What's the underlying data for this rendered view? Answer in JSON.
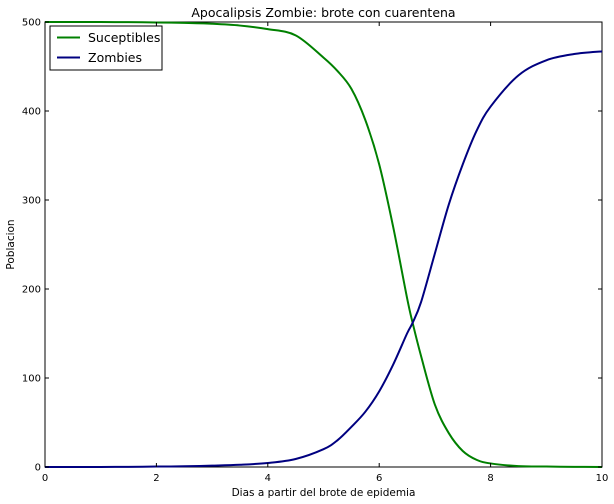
{
  "chart_data": {
    "type": "line",
    "title": "Apocalipsis Zombie: brote con cuarentena",
    "xlabel": "Dias a partir del brote de epidemia",
    "ylabel": "Poblacion",
    "xlim": [
      0,
      10
    ],
    "ylim": [
      0,
      500
    ],
    "xticks": [
      0,
      2,
      4,
      6,
      8,
      10
    ],
    "yticks": [
      0,
      100,
      200,
      300,
      400,
      500
    ],
    "grid": false,
    "legend_position": "top-left",
    "series": [
      {
        "name": "Suceptibles",
        "color": "#008000",
        "x": [
          0,
          0.5,
          1,
          1.5,
          2,
          2.5,
          3,
          3.5,
          4,
          4.5,
          5,
          5.25,
          5.5,
          5.75,
          6,
          6.25,
          6.5,
          6.6,
          6.75,
          7,
          7.25,
          7.5,
          7.75,
          8,
          8.5,
          9,
          9.5,
          10
        ],
        "y": [
          500,
          500,
          500,
          499.8,
          499.5,
          499,
          498,
          496,
          492,
          485,
          460,
          445,
          425,
          390,
          340,
          270,
          190,
          162,
          125,
          70,
          38,
          18,
          8,
          4,
          1,
          0.5,
          0.2,
          0
        ]
      },
      {
        "name": "Zombies",
        "color": "#000080",
        "x": [
          0,
          0.5,
          1,
          1.5,
          2,
          2.5,
          3,
          3.5,
          4,
          4.5,
          5,
          5.25,
          5.5,
          5.75,
          6,
          6.25,
          6.5,
          6.6,
          6.75,
          7,
          7.25,
          7.5,
          7.75,
          8,
          8.5,
          9,
          9.5,
          10
        ],
        "y": [
          0,
          0,
          0,
          0.2,
          0.5,
          0.8,
          1.5,
          2.5,
          4.5,
          9,
          20,
          30,
          45,
          62,
          85,
          115,
          150,
          162,
          185,
          240,
          295,
          340,
          378,
          405,
          440,
          457,
          464,
          467
        ]
      }
    ]
  }
}
